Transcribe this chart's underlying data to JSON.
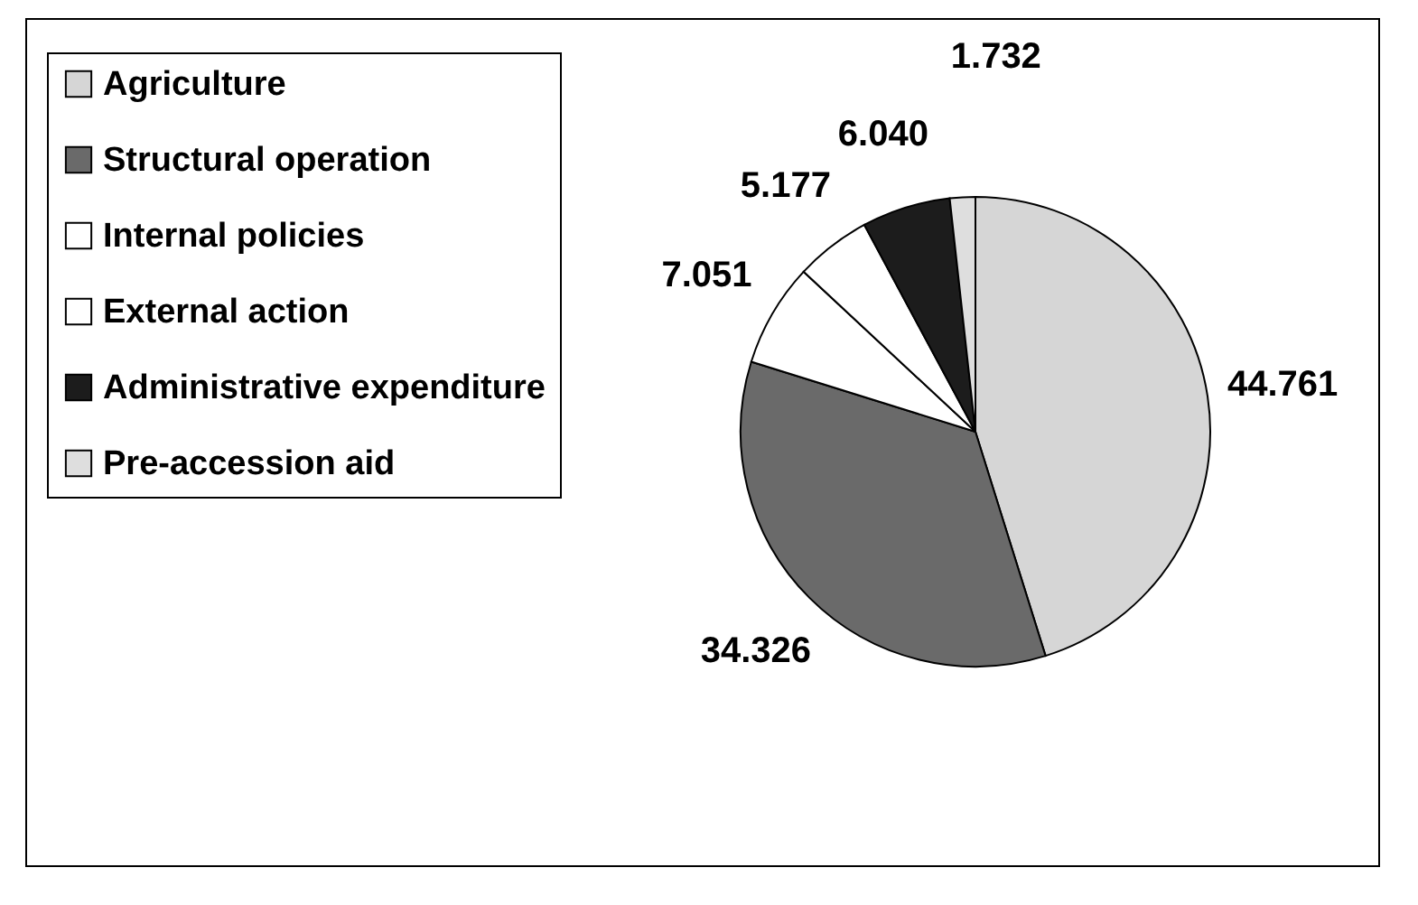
{
  "chart_data": {
    "type": "pie",
    "categories": [
      "Agriculture",
      "Structural operation",
      "Internal policies",
      "External action",
      "Administrative expenditure",
      "Pre-accession aid"
    ],
    "values": [
      44.761,
      34.326,
      7.051,
      5.177,
      6.04,
      1.732
    ],
    "value_labels": [
      "44.761",
      "34.326",
      "7.051",
      "5.177",
      "6.040",
      "1.732"
    ],
    "colors": [
      "#d6d6d6",
      "#6a6a6a",
      "#ffffff",
      "#ffffff",
      "#1c1c1c",
      "#dedede"
    ],
    "legend": "left"
  }
}
